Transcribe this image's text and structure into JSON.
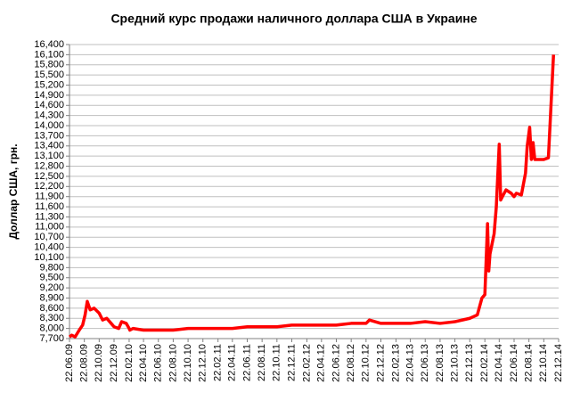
{
  "chart_data": {
    "type": "line",
    "title": "Средний курс продажи наличного доллара США в Украине",
    "y_label": "Доллар США, грн.",
    "x": [
      "22.06.09",
      "01.07.09",
      "15.07.09",
      "01.08.09",
      "15.08.09",
      "25.08.09",
      "03.09.09",
      "15.09.09",
      "01.10.09",
      "22.10.09",
      "05.11.09",
      "22.11.09",
      "10.12.09",
      "22.12.09",
      "10.01.10",
      "22.01.10",
      "10.02.10",
      "22.02.10",
      "25.02.10",
      "10.03.10",
      "22.04.10",
      "22.06.10",
      "22.08.10",
      "22.10.10",
      "22.12.10",
      "22.02.11",
      "22.04.11",
      "22.06.11",
      "22.08.11",
      "22.10.11",
      "22.12.11",
      "22.02.12",
      "22.04.12",
      "22.06.12",
      "22.08.12",
      "22.10.12",
      "05.11.12",
      "22.12.12",
      "22.02.13",
      "22.04.13",
      "22.06.13",
      "22.08.13",
      "22.10.13",
      "22.11.13",
      "22.12.13",
      "22.01.14",
      "10.02.14",
      "22.02.14",
      "05.03.14",
      "10.03.14",
      "15.03.14",
      "01.04.14",
      "10.04.14",
      "22.04.14",
      "28.04.14",
      "05.05.14",
      "20.05.14",
      "10.06.14",
      "22.06.14",
      "01.07.14",
      "22.07.14",
      "08.08.14",
      "15.08.14",
      "25.08.14",
      "01.09.14",
      "08.09.14",
      "15.09.14",
      "22.10.14",
      "10.11.14",
      "01.12.14"
    ],
    "series": [
      {
        "name": "Доллар США",
        "color": "#ff0000",
        "values": [
          7750,
          7800,
          7750,
          7950,
          8100,
          8400,
          8800,
          8550,
          8600,
          8450,
          8250,
          8300,
          8150,
          8050,
          8000,
          8200,
          8150,
          8000,
          7950,
          8000,
          7950,
          7950,
          7950,
          8000,
          8000,
          8000,
          8000,
          8050,
          8050,
          8050,
          8100,
          8100,
          8100,
          8100,
          8150,
          8150,
          8250,
          8150,
          8150,
          8150,
          8200,
          8150,
          8200,
          8250,
          8300,
          8400,
          8900,
          9000,
          11100,
          9700,
          10200,
          10800,
          11600,
          13450,
          11800,
          11900,
          12100,
          12000,
          11900,
          12000,
          11950,
          12600,
          13400,
          13950,
          13000,
          13500,
          13000,
          13000,
          13050,
          16100
        ]
      }
    ],
    "xlim": [
      "22.06.09",
      "22.12.14"
    ],
    "xticks": [
      "22.06.09",
      "22.08.09",
      "22.10.09",
      "22.12.09",
      "22.02.10",
      "22.04.10",
      "22.06.10",
      "22.08.10",
      "22.10.10",
      "22.12.10",
      "22.02.11",
      "22.04.11",
      "22.06.11",
      "22.08.11",
      "22.10.11",
      "22.12.11",
      "22.02.12",
      "22.04.12",
      "22.06.12",
      "22.08.12",
      "22.10.12",
      "22.12.12",
      "22.02.13",
      "22.04.13",
      "22.06.13",
      "22.08.13",
      "22.10.13",
      "22.12.13",
      "22.02.14",
      "22.04.14",
      "22.06.14",
      "22.08.14",
      "22.10.14",
      "22.12.14"
    ],
    "ylim": [
      7700,
      16400
    ],
    "yticks": [
      {
        "value": 7700,
        "label": "7,700"
      },
      {
        "value": 8000,
        "label": "8,000"
      },
      {
        "value": 8300,
        "label": "8,300"
      },
      {
        "value": 8600,
        "label": "8,600"
      },
      {
        "value": 8900,
        "label": "8,900"
      },
      {
        "value": 9200,
        "label": "9,200"
      },
      {
        "value": 9500,
        "label": "9,500"
      },
      {
        "value": 9800,
        "label": "9,800"
      },
      {
        "value": 10100,
        "label": "10,100"
      },
      {
        "value": 10400,
        "label": "10,400"
      },
      {
        "value": 10700,
        "label": "10,700"
      },
      {
        "value": 11000,
        "label": "11,000"
      },
      {
        "value": 11300,
        "label": "11,300"
      },
      {
        "value": 11600,
        "label": "11,600"
      },
      {
        "value": 11900,
        "label": "11,900"
      },
      {
        "value": 12200,
        "label": "12,200"
      },
      {
        "value": 12500,
        "label": "12,500"
      },
      {
        "value": 12800,
        "label": "12,800"
      },
      {
        "value": 13100,
        "label": "13,100"
      },
      {
        "value": 13400,
        "label": "13,400"
      },
      {
        "value": 13700,
        "label": "13,700"
      },
      {
        "value": 14000,
        "label": "14,000"
      },
      {
        "value": 14300,
        "label": "14,300"
      },
      {
        "value": 14600,
        "label": "14,600"
      },
      {
        "value": 14900,
        "label": "14,900"
      },
      {
        "value": 15200,
        "label": "15,200"
      },
      {
        "value": 15500,
        "label": "15,500"
      },
      {
        "value": 15800,
        "label": "15,800"
      },
      {
        "value": 16100,
        "label": "16,100"
      },
      {
        "value": 16400,
        "label": "16,400"
      }
    ],
    "grid": true
  }
}
